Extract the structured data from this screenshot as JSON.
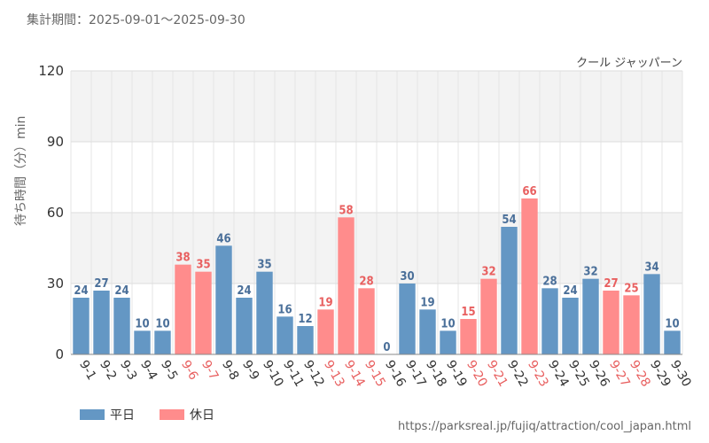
{
  "header": {
    "period": "集計期間：2025-09-01～2025-09-30"
  },
  "legend": {
    "weekday": "平日",
    "holiday": "休日"
  },
  "source": {
    "url": "https://parksreal.jp/fujiq/attraction/cool_japan.html"
  },
  "colors": {
    "weekday": "#6497c4",
    "holiday": "#ff8c8c",
    "weekday_label": "#4a6f99",
    "holiday_label": "#e85f5f"
  },
  "chart_data": {
    "type": "bar",
    "title": "クール ジャッパーン",
    "ylabel": "待ち時間（分）min",
    "xlabel": "",
    "ylim": [
      0,
      120
    ],
    "yticks": [
      0,
      30,
      60,
      90,
      120
    ],
    "categories": [
      "9-1",
      "9-2",
      "9-3",
      "9-4",
      "9-5",
      "9-6",
      "9-7",
      "9-8",
      "9-9",
      "9-10",
      "9-11",
      "9-12",
      "9-13",
      "9-14",
      "9-15",
      "9-16",
      "9-17",
      "9-18",
      "9-19",
      "9-20",
      "9-21",
      "9-22",
      "9-23",
      "9-24",
      "9-25",
      "9-26",
      "9-27",
      "9-28",
      "9-29",
      "9-30"
    ],
    "values": [
      24,
      27,
      24,
      10,
      10,
      38,
      35,
      46,
      24,
      35,
      16,
      12,
      19,
      58,
      28,
      0,
      30,
      19,
      10,
      15,
      32,
      54,
      66,
      28,
      24,
      32,
      27,
      25,
      34,
      10
    ],
    "day_type": [
      "weekday",
      "weekday",
      "weekday",
      "weekday",
      "weekday",
      "holiday",
      "holiday",
      "weekday",
      "weekday",
      "weekday",
      "weekday",
      "weekday",
      "holiday",
      "holiday",
      "holiday",
      "weekday",
      "weekday",
      "weekday",
      "weekday",
      "holiday",
      "holiday",
      "weekday",
      "holiday",
      "weekday",
      "weekday",
      "weekday",
      "holiday",
      "holiday",
      "weekday",
      "weekday"
    ]
  }
}
